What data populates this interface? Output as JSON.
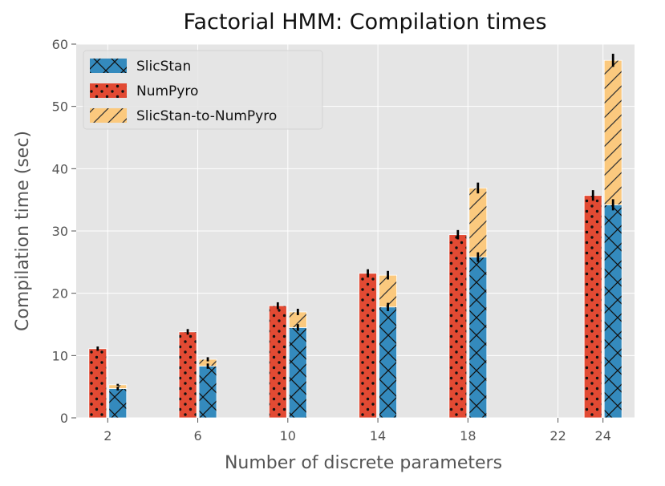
{
  "chart_data": {
    "type": "bar",
    "title": "Factorial HMM: Compilation times",
    "xlabel": "Number of discrete parameters",
    "ylabel": "Compilation time (sec)",
    "ylim": [
      0,
      60
    ],
    "yticks": [
      0,
      10,
      20,
      30,
      40,
      50,
      60
    ],
    "xticks": [
      2,
      6,
      10,
      14,
      18,
      22,
      24
    ],
    "grid": true,
    "legend_position": "top-left",
    "series": [
      {
        "name": "SlicStan",
        "color": "#348ABD",
        "hatch": "crosshatch",
        "x": [
          2,
          6,
          10,
          14,
          18,
          24
        ],
        "values": [
          4.7,
          8.3,
          14.5,
          17.8,
          25.8,
          34.2
        ]
      },
      {
        "name": "NumPyro",
        "color": "#E24A33",
        "hatch": "dots",
        "x": [
          2,
          6,
          10,
          14,
          18,
          24
        ],
        "values": [
          11.1,
          13.8,
          18.0,
          23.2,
          29.4,
          35.7
        ]
      },
      {
        "name": "SlicStan-to-NumPyro",
        "color": "#FBC97E",
        "hatch": "diagonal",
        "x": [
          2,
          6,
          10,
          14,
          18,
          24
        ],
        "values": [
          0.6,
          1.1,
          2.5,
          5.1,
          11.1,
          23.2
        ]
      }
    ]
  }
}
